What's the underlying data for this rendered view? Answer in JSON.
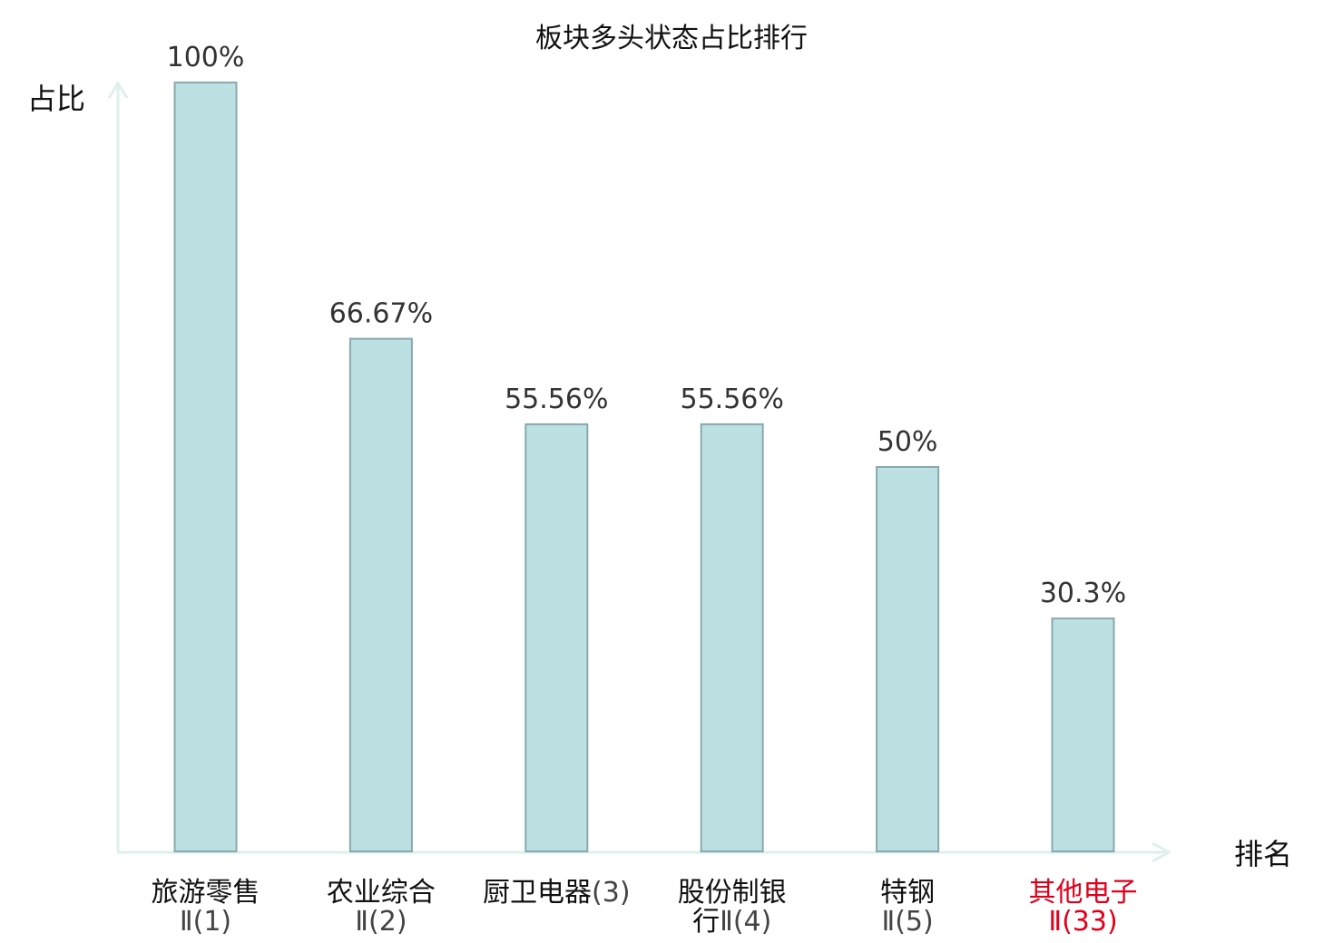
{
  "chart_data": {
    "type": "bar",
    "title": "板块多头状态占比排行",
    "ylabel": "占比",
    "xlabel": "排名",
    "ylim": [
      0,
      100
    ],
    "grid": false,
    "categories": [
      {
        "name_lines": [
          "旅游零售"
        ],
        "rank": "Ⅱ(1)",
        "highlight": false
      },
      {
        "name_lines": [
          "农业综合"
        ],
        "rank": "Ⅱ(2)",
        "highlight": false
      },
      {
        "name_lines": [
          "厨卫电器"
        ],
        "rank": "(3)",
        "highlight": false
      },
      {
        "name_lines": [
          "股份制银",
          "行"
        ],
        "rank": "Ⅱ(4)",
        "highlight": false
      },
      {
        "name_lines": [
          "特钢"
        ],
        "rank": "Ⅱ(5)",
        "highlight": false
      },
      {
        "name_lines": [
          "其他电子"
        ],
        "rank": "Ⅱ(33)",
        "highlight": true
      }
    ],
    "values": [
      100,
      66.67,
      55.56,
      55.56,
      50,
      30.3
    ],
    "value_labels": [
      "100%",
      "66.67%",
      "55.56%",
      "55.56%",
      "50%",
      "30.3%"
    ],
    "colors": {
      "bar_fill": "#bde0e3",
      "bar_stroke": "#88a9ad",
      "axis": "#ddf0ee",
      "highlight": "#e0001b"
    }
  }
}
